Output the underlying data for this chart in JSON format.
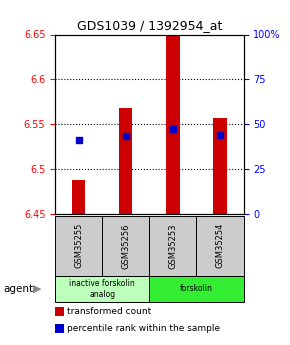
{
  "title": "GDS1039 / 1392954_at",
  "samples": [
    "GSM35255",
    "GSM35256",
    "GSM35253",
    "GSM35254"
  ],
  "bar_bottom": 6.45,
  "bar_values": [
    6.488,
    6.568,
    6.655,
    6.557
  ],
  "percentile_values": [
    6.532,
    6.537,
    6.545,
    6.538
  ],
  "ylim_left": [
    6.45,
    6.65
  ],
  "ylim_right": [
    0,
    100
  ],
  "yticks_left": [
    6.45,
    6.5,
    6.55,
    6.6,
    6.65
  ],
  "yticks_right": [
    0,
    25,
    50,
    75,
    100
  ],
  "ytick_labels_right": [
    "0",
    "25",
    "50",
    "75",
    "100%"
  ],
  "bar_color": "#cc0000",
  "percentile_color": "#0000cc",
  "agent_groups": [
    {
      "label": "inactive forskolin\nanalog",
      "cols": [
        0,
        1
      ],
      "color": "#bbffbb"
    },
    {
      "label": "forskolin",
      "cols": [
        2,
        3
      ],
      "color": "#33ee33"
    }
  ],
  "sample_box_color": "#cccccc",
  "legend_red_label": "transformed count",
  "legend_blue_label": "percentile rank within the sample",
  "background_color": "#ffffff"
}
